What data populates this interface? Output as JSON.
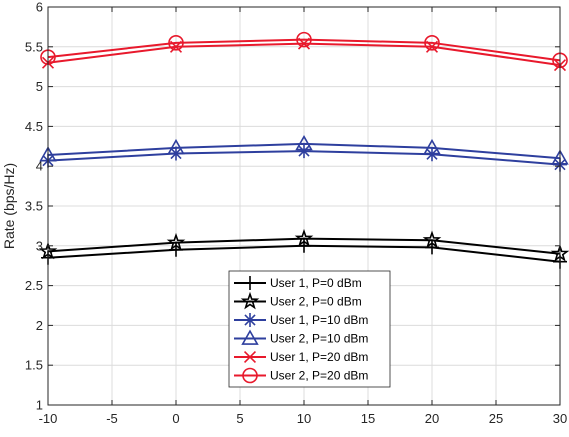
{
  "chart_data": {
    "type": "line",
    "xlabel": "",
    "ylabel": "Rate (bps/Hz)",
    "xlim": [
      -10,
      30
    ],
    "ylim": [
      1,
      6
    ],
    "x_ticks": [
      "-10",
      "-5",
      "0",
      "5",
      "10",
      "15",
      "20",
      "25",
      "30"
    ],
    "y_ticks": [
      "1",
      "1.5",
      "2",
      "2.5",
      "3",
      "3.5",
      "4",
      "4.5",
      "5",
      "5.5",
      "6"
    ],
    "grid": true,
    "legend_position": "bottom-center",
    "x": [
      -10,
      0,
      10,
      20,
      30
    ],
    "series": [
      {
        "name": "User 1, P=0 dBm",
        "color": "#000000",
        "marker": "plus",
        "values": [
          2.85,
          2.95,
          3.0,
          2.98,
          2.8
        ]
      },
      {
        "name": "User 2, P=0 dBm",
        "color": "#000000",
        "marker": "star",
        "values": [
          2.93,
          3.04,
          3.09,
          3.07,
          2.9
        ]
      },
      {
        "name": "User 1, P=10 dBm",
        "color": "#2E3F9E",
        "marker": "asterisk",
        "values": [
          4.07,
          4.16,
          4.19,
          4.15,
          4.02
        ]
      },
      {
        "name": "User 2, P=10 dBm",
        "color": "#2E3F9E",
        "marker": "triangle",
        "values": [
          4.14,
          4.23,
          4.28,
          4.23,
          4.1
        ]
      },
      {
        "name": "User 1, P=20 dBm",
        "color": "#E8192C",
        "marker": "x",
        "values": [
          5.3,
          5.5,
          5.54,
          5.5,
          5.27
        ]
      },
      {
        "name": "User 2, P=20 dBm",
        "color": "#E8192C",
        "marker": "circle",
        "values": [
          5.37,
          5.55,
          5.59,
          5.55,
          5.33
        ]
      }
    ]
  }
}
